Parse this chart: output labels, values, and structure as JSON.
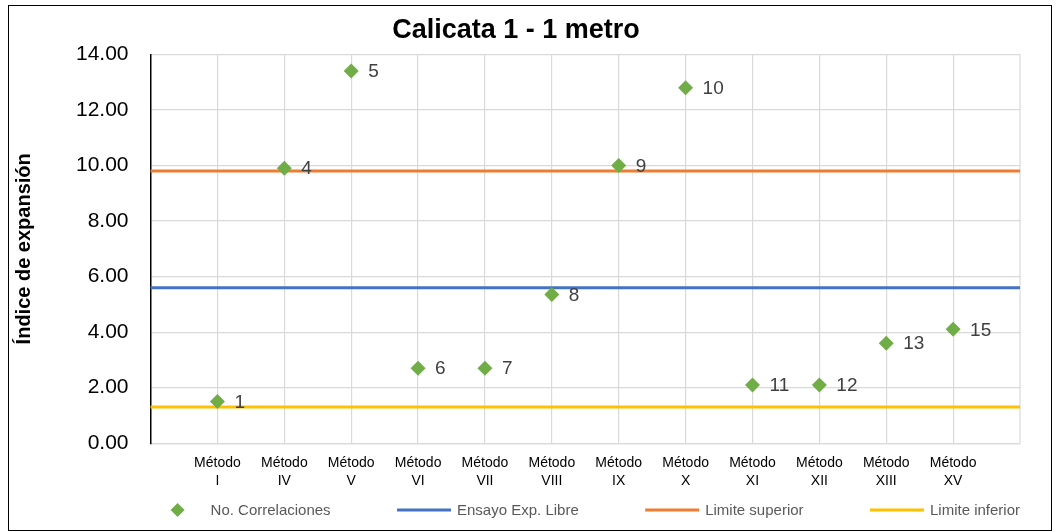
{
  "chart_data": {
    "type": "scatter",
    "title": "Calicata 1 - 1 metro",
    "ylabel": "Índice de expansión",
    "categories": [
      "Método I",
      "Método IV",
      "Método V",
      "Método VI",
      "Método VII",
      "Método VIII",
      "Método IX",
      "Método X",
      "Método XI",
      "Método XII",
      "Método XIII",
      "Método XV"
    ],
    "series": [
      {
        "name": "No. Correlaciones",
        "color": "#70ad47",
        "values": [
          1.5,
          9.9,
          13.4,
          2.7,
          2.7,
          5.35,
          10.0,
          12.8,
          2.1,
          2.1,
          3.6,
          4.1
        ]
      }
    ],
    "ylim": [
      0,
      14
    ],
    "yticks": [
      {
        "value": 0,
        "label": "0.00"
      },
      {
        "value": 2,
        "label": "2.00"
      },
      {
        "value": 4,
        "label": "4.00"
      },
      {
        "value": 6,
        "label": "6.00"
      },
      {
        "value": 8,
        "label": "8.00"
      },
      {
        "value": 10,
        "label": "10.00"
      },
      {
        "value": 12,
        "label": "12.00"
      },
      {
        "value": 14,
        "label": "14.00"
      }
    ],
    "ref_lines": [
      {
        "axis": "y",
        "value": 5.6,
        "label": "Ensayo Exp. Libre",
        "color": "#4472c4"
      },
      {
        "axis": "y",
        "value": 9.8,
        "label": "Limite superior",
        "color": "#ed7d31"
      },
      {
        "axis": "y",
        "value": 1.3,
        "label": "Limite inferior",
        "color": "#ffc000"
      }
    ],
    "annotations": [
      {
        "text": "1",
        "x": "Método I",
        "y": 1.5
      },
      {
        "text": "4",
        "x": "Método IV",
        "y": 9.9
      },
      {
        "text": "5",
        "x": "Método V",
        "y": 13.4
      },
      {
        "text": "6",
        "x": "Método VI",
        "y": 2.7
      },
      {
        "text": "7",
        "x": "Método VII",
        "y": 2.7
      },
      {
        "text": "8",
        "x": "Método VIII",
        "y": 5.35
      },
      {
        "text": "9",
        "x": "Método IX",
        "y": 10.0
      },
      {
        "text": "10",
        "x": "Método X",
        "y": 12.8
      },
      {
        "text": "11",
        "x": "Método XI",
        "y": 2.1
      },
      {
        "text": "12",
        "x": "Método XII",
        "y": 2.1
      },
      {
        "text": "13",
        "x": "Método XIII",
        "y": 3.6
      },
      {
        "text": "15",
        "x": "Método XV",
        "y": 4.1
      }
    ],
    "grid": true,
    "legend": "bottom",
    "marker": "diamond"
  }
}
